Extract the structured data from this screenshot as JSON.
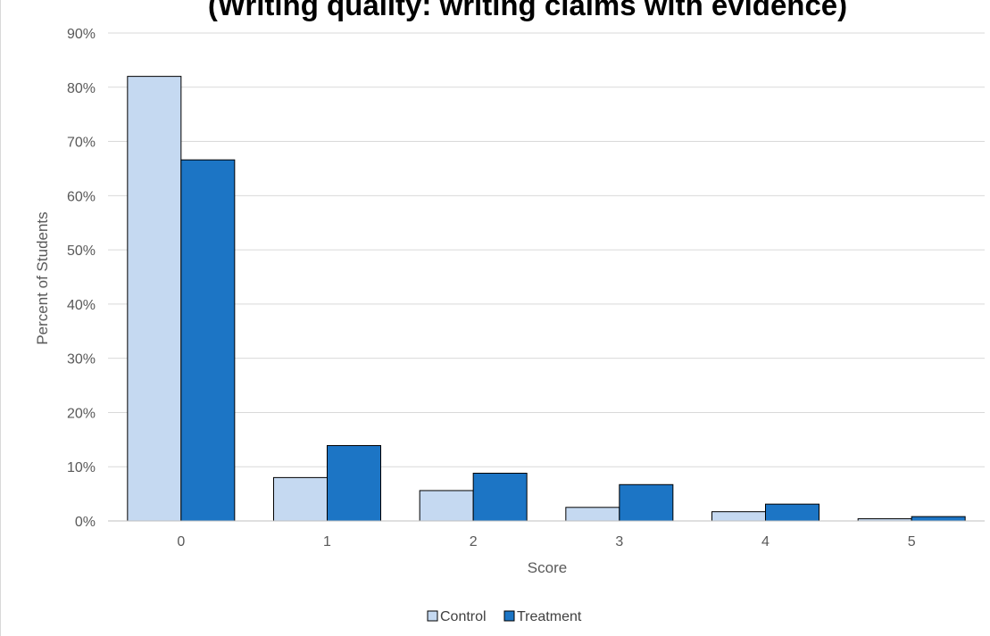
{
  "chart_data": {
    "type": "bar",
    "title": "(Writing quality: writing claims with evidence)",
    "xlabel": "Score",
    "ylabel": "Percent of Students",
    "categories": [
      "0",
      "1",
      "2",
      "3",
      "4",
      "5"
    ],
    "series": [
      {
        "name": "Control",
        "values": [
          82,
          8,
          5.6,
          2.5,
          1.7,
          0.4
        ],
        "color": "#c5d9f1"
      },
      {
        "name": "Treatment",
        "values": [
          66.6,
          13.9,
          8.8,
          6.7,
          3.1,
          0.8
        ],
        "color": "#1c75c5"
      }
    ],
    "ylim": [
      0,
      90
    ],
    "ytick_labels": [
      "0%",
      "10%",
      "20%",
      "30%",
      "40%",
      "50%",
      "60%",
      "70%",
      "80%",
      "90%"
    ],
    "grid": true,
    "legend": "bottom"
  }
}
